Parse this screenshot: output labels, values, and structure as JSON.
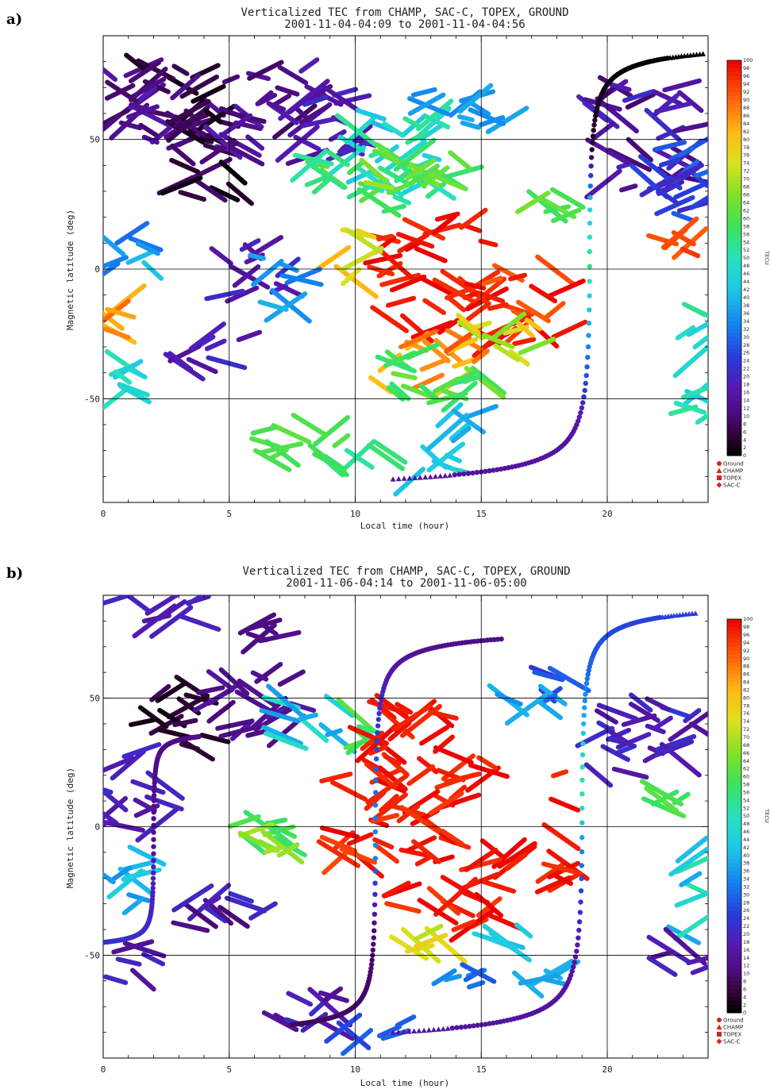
{
  "chart_data": [
    {
      "type": "scatter",
      "panel_label": "a)",
      "title_line1": "Verticalized TEC from CHAMP, SAC-C, TOPEX, GROUND",
      "title_line2": "2001-11-04-04:09 to 2001-11-04-04:56",
      "xlabel": "Local time (hour)",
      "ylabel": "Magnetic latitude (deg)",
      "xlim": [
        0,
        24
      ],
      "ylim": [
        -90,
        90
      ],
      "x_ticks": [
        "0",
        "5",
        "10",
        "15",
        "20"
      ],
      "y_ticks": [
        "50",
        "0",
        "-50"
      ],
      "grid": true,
      "colorbar": {
        "min": 0,
        "max": 100,
        "labels": [
          "100",
          "98",
          "96",
          "94",
          "92",
          "90",
          "88",
          "86",
          "84",
          "82",
          "80",
          "78",
          "76",
          "74",
          "72",
          "70",
          "68",
          "66",
          "64",
          "62",
          "60",
          "58",
          "56",
          "54",
          "52",
          "50",
          "48",
          "46",
          "44",
          "42",
          "40",
          "38",
          "36",
          "34",
          "32",
          "30",
          "28",
          "26",
          "24",
          "22",
          "20",
          "18",
          "16",
          "14",
          "12",
          "10",
          "8",
          "6",
          "4",
          "2",
          "0"
        ],
        "unit": "TECU"
      },
      "legend": [
        "Ground",
        "CHAMP",
        "TOPEX",
        "SAC-C"
      ],
      "legend_position": "bottom-right",
      "tracks": [
        {
          "name": "CHAMP",
          "x_start": 11.5,
          "x_end": 23.8,
          "x_mid": 19.3,
          "steep": 0.35,
          "lat_min": -81,
          "lat_max": 83,
          "tec_profile": [
            [
              -81,
              15
            ],
            [
              -60,
              15
            ],
            [
              -40,
              28
            ],
            [
              -10,
              45
            ],
            [
              0,
              55
            ],
            [
              10,
              50
            ],
            [
              25,
              45
            ],
            [
              45,
              5
            ],
            [
              83,
              0
            ]
          ]
        }
      ],
      "clusters": [
        {
          "x": [
            1.0,
            4.5
          ],
          "y": [
            45,
            82
          ],
          "tec": [
            2,
            18
          ]
        },
        {
          "x": [
            2.5,
            5.5
          ],
          "y": [
            28,
            62
          ],
          "tec": [
            0,
            10
          ]
        },
        {
          "x": [
            4.5,
            8.5
          ],
          "y": [
            40,
            80
          ],
          "tec": [
            8,
            18
          ]
        },
        {
          "x": [
            7.5,
            10.5
          ],
          "y": [
            45,
            70
          ],
          "tec": [
            14,
            22
          ]
        },
        {
          "x": [
            9.5,
            13.5
          ],
          "y": [
            30,
            65
          ],
          "tec": [
            40,
            55
          ]
        },
        {
          "x": [
            12.5,
            16.5
          ],
          "y": [
            55,
            70
          ],
          "tec": [
            34,
            40
          ]
        },
        {
          "x": [
            8.0,
            12.5
          ],
          "y": [
            22,
            45
          ],
          "tec": [
            50,
            62
          ]
        },
        {
          "x": [
            10.5,
            14.5
          ],
          "y": [
            25,
            45
          ],
          "tec": [
            55,
            70
          ]
        },
        {
          "x": [
            11.0,
            15.5
          ],
          "y": [
            -25,
            22
          ],
          "tec": [
            95,
            100
          ]
        },
        {
          "x": [
            15.0,
            18.5
          ],
          "y": [
            -28,
            0
          ],
          "tec": [
            90,
            100
          ]
        },
        {
          "x": [
            11.0,
            15.0
          ],
          "y": [
            -45,
            -25
          ],
          "tec": [
            78,
            92
          ]
        },
        {
          "x": [
            11.0,
            15.5
          ],
          "y": [
            -50,
            -30
          ],
          "tec": [
            55,
            65
          ]
        },
        {
          "x": [
            8.5,
            10.5
          ],
          "y": [
            -5,
            15
          ],
          "tec": [
            70,
            85
          ]
        },
        {
          "x": [
            4.5,
            7.5
          ],
          "y": [
            -10,
            10
          ],
          "tec": [
            14,
            22
          ]
        },
        {
          "x": [
            6.0,
            8.0
          ],
          "y": [
            -15,
            5
          ],
          "tec": [
            30,
            40
          ]
        },
        {
          "x": [
            3.0,
            6.0
          ],
          "y": [
            -40,
            -25
          ],
          "tec": [
            14,
            22
          ]
        },
        {
          "x": [
            0.0,
            1.5
          ],
          "y": [
            -60,
            -35
          ],
          "tec": [
            40,
            52
          ]
        },
        {
          "x": [
            0.0,
            1.0
          ],
          "y": [
            -25,
            -10
          ],
          "tec": [
            80,
            90
          ]
        },
        {
          "x": [
            0.0,
            2.0
          ],
          "y": [
            -5,
            15
          ],
          "tec": [
            30,
            50
          ]
        },
        {
          "x": [
            0.0,
            2.0
          ],
          "y": [
            50,
            80
          ],
          "tec": [
            8,
            16
          ]
        },
        {
          "x": [
            6.0,
            10.0
          ],
          "y": [
            -75,
            -60
          ],
          "tec": [
            58,
            62
          ]
        },
        {
          "x": [
            9.0,
            12.0
          ],
          "y": [
            -80,
            -70
          ],
          "tec": [
            52,
            58
          ]
        },
        {
          "x": [
            12.0,
            14.5
          ],
          "y": [
            -82,
            -72
          ],
          "tec": [
            40,
            46
          ]
        },
        {
          "x": [
            13.5,
            15.5
          ],
          "y": [
            -65,
            -55
          ],
          "tec": [
            36,
            44
          ]
        },
        {
          "x": [
            19.5,
            23.5
          ],
          "y": [
            30,
            72
          ],
          "tec": [
            8,
            22
          ]
        },
        {
          "x": [
            21.5,
            24.0
          ],
          "y": [
            20,
            55
          ],
          "tec": [
            20,
            30
          ]
        },
        {
          "x": [
            22.0,
            24.0
          ],
          "y": [
            -60,
            -45
          ],
          "tec": [
            44,
            55
          ]
        },
        {
          "x": [
            23.0,
            24.0
          ],
          "y": [
            -40,
            -15
          ],
          "tec": [
            44,
            55
          ]
        },
        {
          "x": [
            22.0,
            23.5
          ],
          "y": [
            5,
            15
          ],
          "tec": [
            90,
            98
          ]
        },
        {
          "x": [
            17.0,
            18.5
          ],
          "y": [
            20,
            28
          ],
          "tec": [
            55,
            65
          ]
        },
        {
          "x": [
            14.0,
            17.5
          ],
          "y": [
            -35,
            -20
          ],
          "tec": [
            65,
            80
          ]
        }
      ]
    },
    {
      "type": "scatter",
      "panel_label": "b)",
      "title_line1": "Verticalized TEC from CHAMP, SAC-C, TOPEX, GROUND",
      "title_line2": "2001-11-06-04:14 to 2001-11-06-05:00",
      "xlabel": "Local time (hour)",
      "ylabel": "Magnetic latitude (deg)",
      "xlim": [
        0,
        24
      ],
      "ylim": [
        -90,
        90
      ],
      "x_ticks": [
        "0",
        "5",
        "10",
        "15",
        "20"
      ],
      "y_ticks": [
        "50",
        "0",
        "-50"
      ],
      "grid": true,
      "colorbar": {
        "min": 0,
        "max": 100,
        "labels": [
          "100",
          "98",
          "96",
          "94",
          "92",
          "90",
          "88",
          "86",
          "84",
          "82",
          "80",
          "78",
          "76",
          "74",
          "72",
          "70",
          "68",
          "66",
          "64",
          "62",
          "60",
          "58",
          "56",
          "54",
          "52",
          "50",
          "48",
          "46",
          "44",
          "42",
          "40",
          "38",
          "36",
          "34",
          "32",
          "30",
          "28",
          "26",
          "24",
          "22",
          "20",
          "18",
          "16",
          "14",
          "12",
          "10",
          "8",
          "6",
          "4",
          "2",
          "0"
        ],
        "unit": "TECU"
      },
      "legend": [
        "Ground",
        "CHAMP",
        "TOPEX",
        "SAC-C"
      ],
      "legend_position": "bottom-right",
      "tracks": [
        {
          "name": "CHAMP",
          "x_start": 11.5,
          "x_end": 23.5,
          "x_mid": 19.0,
          "steep": 0.35,
          "lat_min": -80,
          "lat_max": 83,
          "tec_profile": [
            [
              -80,
              15
            ],
            [
              -50,
              15
            ],
            [
              -20,
              28
            ],
            [
              0,
              40
            ],
            [
              15,
              55
            ],
            [
              30,
              45
            ],
            [
              60,
              30
            ],
            [
              83,
              25
            ]
          ]
        },
        {
          "name": "TOPEX",
          "x_start": 7.5,
          "x_end": 15.8,
          "x_mid": 10.8,
          "steep": 0.6,
          "lat_min": -77,
          "lat_max": 73,
          "tec_profile": [
            [
              -77,
              8
            ],
            [
              -40,
              10
            ],
            [
              -10,
              34
            ],
            [
              20,
              30
            ],
            [
              50,
              20
            ],
            [
              73,
              12
            ]
          ]
        },
        {
          "name": "TOPEX",
          "x_start": 0.0,
          "x_end": 3.8,
          "x_mid": 2.0,
          "steep": 1.2,
          "lat_min": -45,
          "lat_max": 35,
          "tec_profile": [
            [
              -45,
              22
            ],
            [
              -20,
              18
            ],
            [
              0,
              12
            ],
            [
              20,
              12
            ],
            [
              35,
              12
            ]
          ]
        }
      ],
      "clusters": [
        {
          "x": [
            0.0,
            4.0
          ],
          "y": [
            78,
            90
          ],
          "tec": [
            16,
            22
          ]
        },
        {
          "x": [
            1.5,
            4.5
          ],
          "y": [
            30,
            55
          ],
          "tec": [
            0,
            8
          ]
        },
        {
          "x": [
            4.0,
            8.0
          ],
          "y": [
            35,
            60
          ],
          "tec": [
            10,
            16
          ]
        },
        {
          "x": [
            5.0,
            7.5
          ],
          "y": [
            70,
            82
          ],
          "tec": [
            10,
            14
          ]
        },
        {
          "x": [
            7.0,
            9.5
          ],
          "y": [
            30,
            50
          ],
          "tec": [
            36,
            50
          ]
        },
        {
          "x": [
            9.0,
            11.0
          ],
          "y": [
            30,
            45
          ],
          "tec": [
            55,
            65
          ]
        },
        {
          "x": [
            10.5,
            15.5
          ],
          "y": [
            10,
            48
          ],
          "tec": [
            95,
            100
          ]
        },
        {
          "x": [
            9.0,
            11.5
          ],
          "y": [
            -15,
            20
          ],
          "tec": [
            92,
            100
          ]
        },
        {
          "x": [
            11.5,
            16.5
          ],
          "y": [
            -40,
            10
          ],
          "tec": [
            94,
            100
          ]
        },
        {
          "x": [
            12.0,
            15.0
          ],
          "y": [
            -48,
            -38
          ],
          "tec": [
            70,
            85
          ]
        },
        {
          "x": [
            15.0,
            17.0
          ],
          "y": [
            -48,
            -40
          ],
          "tec": [
            36,
            44
          ]
        },
        {
          "x": [
            5.5,
            7.5
          ],
          "y": [
            -15,
            5
          ],
          "tec": [
            56,
            62
          ]
        },
        {
          "x": [
            6.0,
            7.5
          ],
          "y": [
            -10,
            0
          ],
          "tec": [
            66,
            72
          ]
        },
        {
          "x": [
            0.0,
            2.5
          ],
          "y": [
            0,
            30
          ],
          "tec": [
            14,
            22
          ]
        },
        {
          "x": [
            0.0,
            2.0
          ],
          "y": [
            -35,
            -10
          ],
          "tec": [
            34,
            44
          ]
        },
        {
          "x": [
            3.0,
            6.5
          ],
          "y": [
            -40,
            -25
          ],
          "tec": [
            10,
            22
          ]
        },
        {
          "x": [
            0.0,
            2.0
          ],
          "y": [
            -60,
            -45
          ],
          "tec": [
            12,
            22
          ]
        },
        {
          "x": [
            7.0,
            9.5
          ],
          "y": [
            -80,
            -60
          ],
          "tec": [
            12,
            22
          ]
        },
        {
          "x": [
            9.5,
            12.0
          ],
          "y": [
            -85,
            -75
          ],
          "tec": [
            24,
            30
          ]
        },
        {
          "x": [
            13.5,
            15.0
          ],
          "y": [
            -62,
            -55
          ],
          "tec": [
            28,
            36
          ]
        },
        {
          "x": [
            16.5,
            18.5
          ],
          "y": [
            -62,
            -55
          ],
          "tec": [
            36,
            44
          ]
        },
        {
          "x": [
            19.5,
            24.0
          ],
          "y": [
            20,
            50
          ],
          "tec": [
            14,
            24
          ]
        },
        {
          "x": [
            17.0,
            19.0
          ],
          "y": [
            50,
            60
          ],
          "tec": [
            20,
            30
          ]
        },
        {
          "x": [
            21.5,
            23.0
          ],
          "y": [
            5,
            15
          ],
          "tec": [
            56,
            62
          ]
        },
        {
          "x": [
            23.0,
            24.0
          ],
          "y": [
            -45,
            -5
          ],
          "tec": [
            36,
            52
          ]
        },
        {
          "x": [
            22.0,
            24.0
          ],
          "y": [
            -55,
            -45
          ],
          "tec": [
            8,
            20
          ]
        },
        {
          "x": [
            17.5,
            18.5
          ],
          "y": [
            -25,
            25
          ],
          "tec": [
            95,
            100
          ]
        },
        {
          "x": [
            16.0,
            18.0
          ],
          "y": [
            45,
            55
          ],
          "tec": [
            30,
            40
          ]
        }
      ]
    }
  ]
}
